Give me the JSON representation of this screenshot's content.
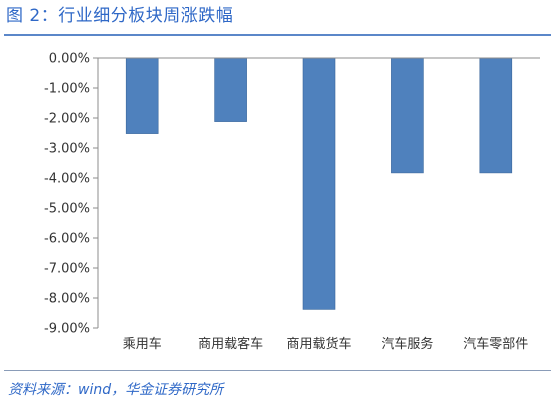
{
  "figure_title": "图 2：行业细分板块周涨跌幅",
  "source": "资料来源：wind，华金证券研究所",
  "colors": {
    "bar": "#4f81bd",
    "bar_stroke": "#3b679b",
    "axis": "#8c8c8c",
    "title": "#2f68c7"
  },
  "chart_data": {
    "type": "bar",
    "title": "",
    "xlabel": "",
    "ylabel": "",
    "categories": [
      "乘用车",
      "商用载客车",
      "商用载货车",
      "汽车服务",
      "汽车零部件"
    ],
    "values": [
      -2.52,
      -2.12,
      -8.38,
      -3.83,
      -3.83
    ],
    "ylim": [
      -9,
      0
    ],
    "y_ticks": [
      0,
      -1,
      -2,
      -3,
      -4,
      -5,
      -6,
      -7,
      -8,
      -9
    ],
    "y_tick_labels": [
      "0.00%",
      "-1.00%",
      "-2.00%",
      "-3.00%",
      "-4.00%",
      "-5.00%",
      "-6.00%",
      "-7.00%",
      "-8.00%",
      "-9.00%"
    ],
    "grid": false,
    "legend": "none",
    "unit": "%"
  }
}
